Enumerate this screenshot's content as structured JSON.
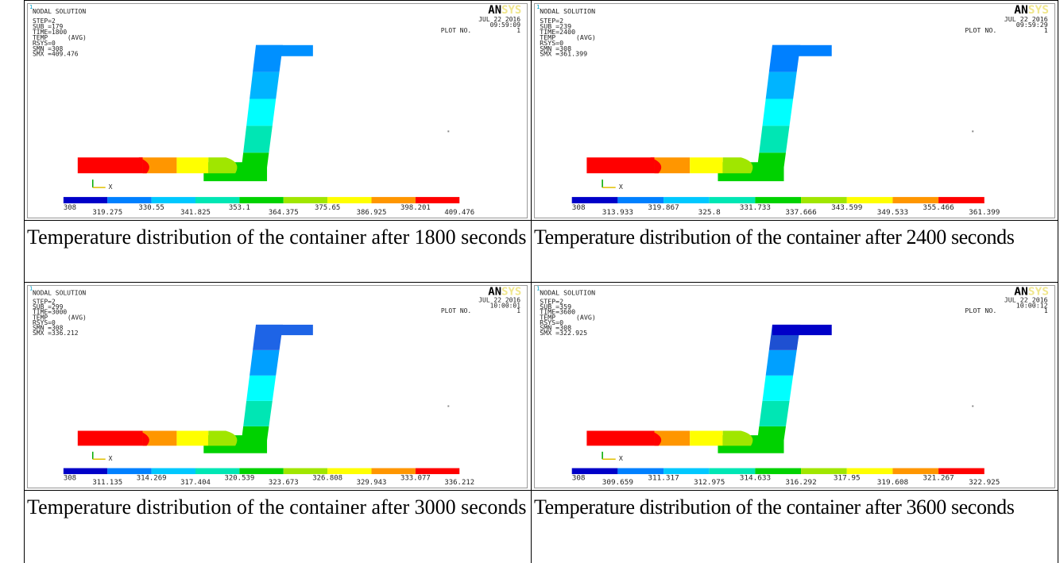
{
  "figure": {
    "panels": [
      {
        "image": {
          "label": "1",
          "header": "NODAL SOLUTION",
          "step": "STEP=2",
          "sub": "SUB =179",
          "time": "TIME=1800",
          "temp": "TEMP",
          "avg": "(AVG)",
          "rsys": "RSYS=0",
          "smn": "SMN =308",
          "smx": "SMX =409.476",
          "date": "JUL 22 2016",
          "clock": "09:59:09",
          "plot": "PLOT NO.",
          "plot_no": "1",
          "logo_a": "AN",
          "logo_b": "SYS",
          "axis": "X",
          "legend": [
            "308",
            "319.275",
            "330.55",
            "341.825",
            "353.1",
            "364.375",
            "375.65",
            "386.925",
            "398.201",
            "409.476"
          ]
        },
        "caption": "Temperature distribution of the container after 1800 seconds"
      },
      {
        "image": {
          "label": "1",
          "header": "NODAL SOLUTION",
          "step": "STEP=2",
          "sub": "SUB =239",
          "time": "TIME=2400",
          "temp": "TEMP",
          "avg": "(AVG)",
          "rsys": "RSYS=0",
          "smn": "SMN =308",
          "smx": "SMX =361.399",
          "date": "JUL 22 2016",
          "clock": "09:59:29",
          "plot": "PLOT NO.",
          "plot_no": "1",
          "logo_a": "AN",
          "logo_b": "SYS",
          "axis": "X",
          "legend": [
            "308",
            "313.933",
            "319.867",
            "325.8",
            "331.733",
            "337.666",
            "343.599",
            "349.533",
            "355.466",
            "361.399"
          ]
        },
        "caption": "Temperature distribution of the container after 2400 seconds"
      },
      {
        "image": {
          "label": "1",
          "header": "NODAL SOLUTION",
          "step": "STEP=2",
          "sub": "SUB =299",
          "time": "TIME=3000",
          "temp": "TEMP",
          "avg": "(AVG)",
          "rsys": "RSYS=0",
          "smn": "SMN =308",
          "smx": "SMX =336.212",
          "date": "JUL 22 2016",
          "clock": "10:00:01",
          "plot": "PLOT NO.",
          "plot_no": "1",
          "logo_a": "AN",
          "logo_b": "SYS",
          "axis": "X",
          "legend": [
            "308",
            "311.135",
            "314.269",
            "317.404",
            "320.539",
            "323.673",
            "326.808",
            "329.943",
            "333.077",
            "336.212"
          ]
        },
        "caption": "Temperature distribution of the container after 3000 seconds"
      },
      {
        "image": {
          "label": "1",
          "header": "NODAL SOLUTION",
          "step": "STEP=2",
          "sub": "SUB =359",
          "time": "TIME=3600",
          "temp": "TEMP",
          "avg": "(AVG)",
          "rsys": "RSYS=0",
          "smn": "SMN =308",
          "smx": "SMX =322.925",
          "date": "JUL 22 2016",
          "clock": "10:00:12",
          "plot": "PLOT NO.",
          "plot_no": "1",
          "logo_a": "AN",
          "logo_b": "SYS",
          "axis": "X",
          "legend": [
            "308",
            "309.659",
            "311.317",
            "312.975",
            "314.633",
            "316.292",
            "317.95",
            "319.608",
            "321.267",
            "322.925"
          ]
        },
        "caption": "Temperature distribution of the container after 3600 seconds"
      }
    ]
  }
}
